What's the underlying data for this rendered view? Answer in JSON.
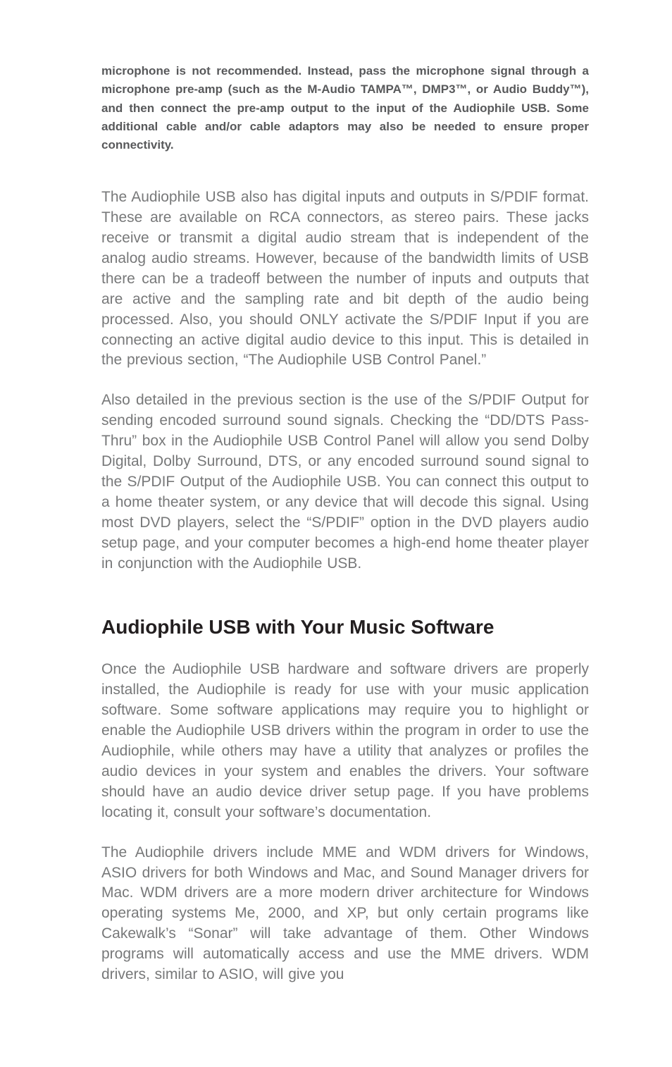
{
  "note": {
    "text": "microphone is not recommended. Instead, pass the microphone signal through a microphone pre-amp (such as the M-Audio TAMPA™, DMP3™, or Audio Buddy™), and then connect the pre-amp output to the input of the Audiophile USB. Some additional cable and/or cable adaptors may also be needed to ensure proper connectivity."
  },
  "paragraphs": {
    "p1": "The Audiophile USB also has digital inputs and outputs in S/PDIF format. These are available on RCA connectors, as stereo pairs. These jacks receive or transmit a digital audio stream that is independent of the analog audio streams. However, because of the bandwidth limits of USB there can be a tradeoff between the number of inputs and outputs that are active and the sampling rate and bit depth of the audio being processed. Also, you should ONLY activate the S/PDIF Input if you are connecting an active digital audio device to this input. This is detailed in the previous section, “The Audiophile USB Control Panel.”",
    "p2": "Also detailed in the previous section is the use of the S/PDIF Output for sending encoded surround sound signals. Checking the “DD/DTS Pass-Thru” box in the Audiophile USB Control Panel will allow you send Dolby Digital, Dolby Surround, DTS, or any encoded surround sound signal to the S/PDIF Output of the Audiophile USB. You can connect this output to a home theater system, or any device that will decode this signal. Using most DVD players, select the “S/PDIF” option in the DVD players audio setup page, and your computer becomes a high-end home theater player in conjunction with the Audiophile USB."
  },
  "heading": {
    "text": "Audiophile USB with Your Music Software"
  },
  "section_paragraphs": {
    "sp1": "Once the Audiophile USB hardware and software drivers are properly installed, the Audiophile is ready for use with your music application software. Some software applications may require you to highlight or enable the Audiophile USB drivers within the program in order to use the Audiophile, while others may have a utility that analyzes or profiles the audio devices in your system and enables the drivers. Your software should have an audio device driver setup page. If you have problems locating it, consult your software’s documentation.",
    "sp2": "The Audiophile drivers include MME and WDM drivers for Windows, ASIO drivers for both Windows and Mac, and Sound Manager drivers for Mac. WDM drivers are a more modern driver architecture for Windows operating systems Me, 2000, and XP, but only certain programs like Cakewalk’s “Sonar” will take advantage of them. Other Windows programs will automatically access and use the MME drivers. WDM drivers, similar to ASIO, will give you"
  },
  "colors": {
    "body_text": "#777879",
    "note_text": "#58595b",
    "heading_text": "#231f20",
    "background": "#ffffff"
  }
}
